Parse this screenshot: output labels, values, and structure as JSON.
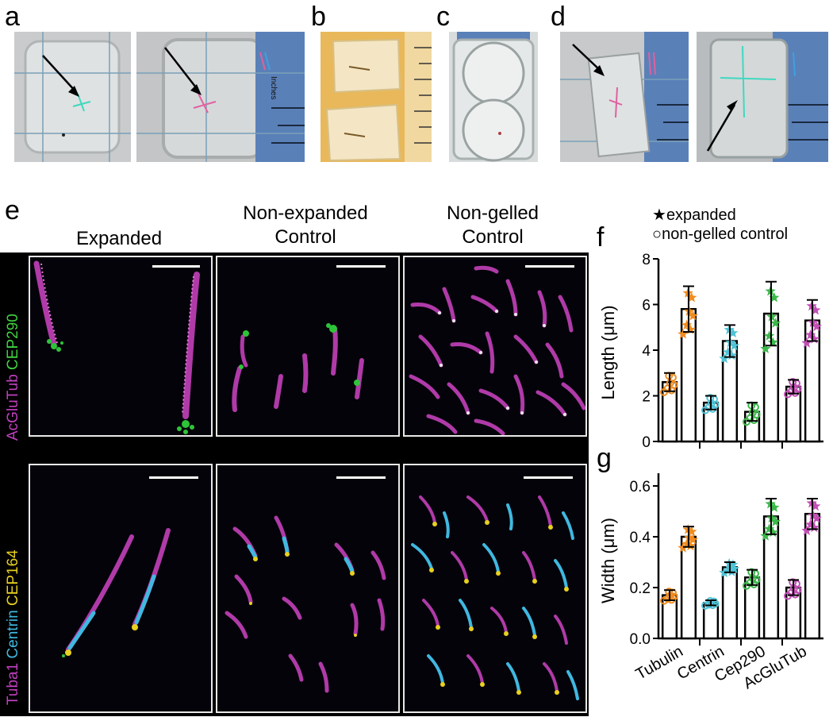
{
  "panels": {
    "a": "a",
    "b": "b",
    "c": "c",
    "d": "d",
    "e": "e",
    "f": "f",
    "g": "g"
  },
  "photos": {
    "ruler_label": "Inches"
  },
  "microscopy": {
    "columns": [
      "Expanded",
      "Non-expanded",
      "Control",
      "Non-gelled",
      "Control"
    ],
    "row1_label_parts": [
      {
        "text": "AcGluTub ",
        "color": "#c040c0"
      },
      {
        "text": "CEP290",
        "color": "#40d040"
      }
    ],
    "row2_label_parts": [
      {
        "text": "Tuba1 ",
        "color": "#c040c0"
      },
      {
        "text": "Centrin ",
        "color": "#40b8e0"
      },
      {
        "text": "CEP164",
        "color": "#e8d020"
      }
    ]
  },
  "legend": {
    "expanded": "expanded",
    "non_gelled": "non-gelled control"
  },
  "chart_data": [
    {
      "type": "bar",
      "panel": "f",
      "ylabel": "Length (μm)",
      "ylim": [
        0,
        8
      ],
      "yticks": [
        "0",
        "2",
        "4",
        "6",
        "8"
      ],
      "categories": [
        "Tubulin",
        "Centrin",
        "Cep290",
        "AcGluTub"
      ],
      "series": [
        {
          "name": "non-gelled control",
          "values": [
            2.6,
            1.7,
            1.3,
            2.4
          ],
          "errors": [
            0.4,
            0.3,
            0.4,
            0.3
          ]
        },
        {
          "name": "expanded",
          "values": [
            5.8,
            4.4,
            5.6,
            5.3
          ],
          "errors": [
            1.0,
            0.7,
            1.4,
            0.9
          ]
        }
      ],
      "colors": [
        "#f08c1e",
        "#4fc3d6",
        "#3cb84a",
        "#c24fb5"
      ]
    },
    {
      "type": "bar",
      "panel": "g",
      "ylabel": "Width (μm)",
      "ylim": [
        0,
        0.65
      ],
      "yticks": [
        "0.0",
        "0.2",
        "0.4",
        "0.6"
      ],
      "categories": [
        "Tubulin",
        "Centrin",
        "Cep290",
        "AcGluTub"
      ],
      "series": [
        {
          "name": "non-gelled control",
          "values": [
            0.17,
            0.14,
            0.24,
            0.2
          ],
          "errors": [
            0.02,
            0.01,
            0.03,
            0.03
          ]
        },
        {
          "name": "expanded",
          "values": [
            0.4,
            0.28,
            0.48,
            0.49
          ],
          "errors": [
            0.04,
            0.02,
            0.07,
            0.06
          ]
        }
      ],
      "colors": [
        "#f08c1e",
        "#4fc3d6",
        "#3cb84a",
        "#c24fb5"
      ]
    }
  ]
}
